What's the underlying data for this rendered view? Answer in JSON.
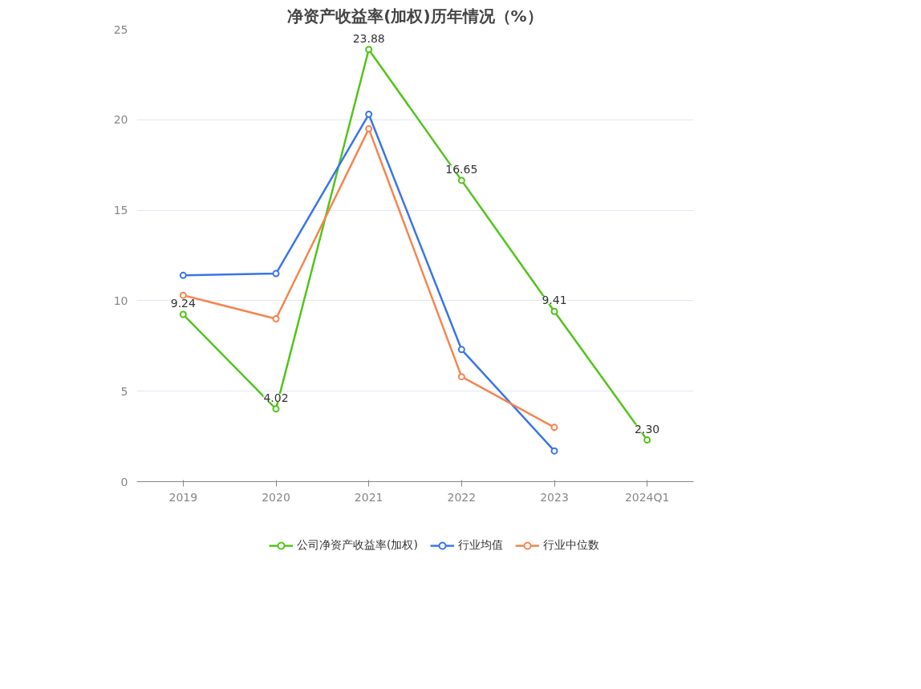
{
  "chart_data": {
    "type": "line",
    "title": "净资产收益率(加权)历年情况（%）",
    "categories": [
      "2019",
      "2020",
      "2021",
      "2022",
      "2023",
      "2024Q1"
    ],
    "series": [
      {
        "name": "公司净资产收益率(加权)",
        "color": "#52c41a",
        "values": [
          9.24,
          4.02,
          23.88,
          16.65,
          9.41,
          2.3
        ],
        "value_labels": [
          "9.24",
          "4.02",
          "23.88",
          "16.65",
          "9.41",
          "2.30"
        ]
      },
      {
        "name": "行业均值",
        "color": "#3a75e8",
        "values": [
          11.4,
          11.5,
          20.3,
          7.3,
          1.7,
          null
        ]
      },
      {
        "name": "行业中位数",
        "color": "#f5854f",
        "values": [
          10.3,
          9.0,
          19.5,
          5.8,
          3.0,
          null
        ]
      }
    ],
    "ylim": [
      0,
      25
    ],
    "yticks": [
      0,
      5,
      10,
      15,
      20,
      25
    ],
    "grid": "y",
    "legend": "bottom",
    "marker": "circle",
    "line_style": "solid"
  }
}
